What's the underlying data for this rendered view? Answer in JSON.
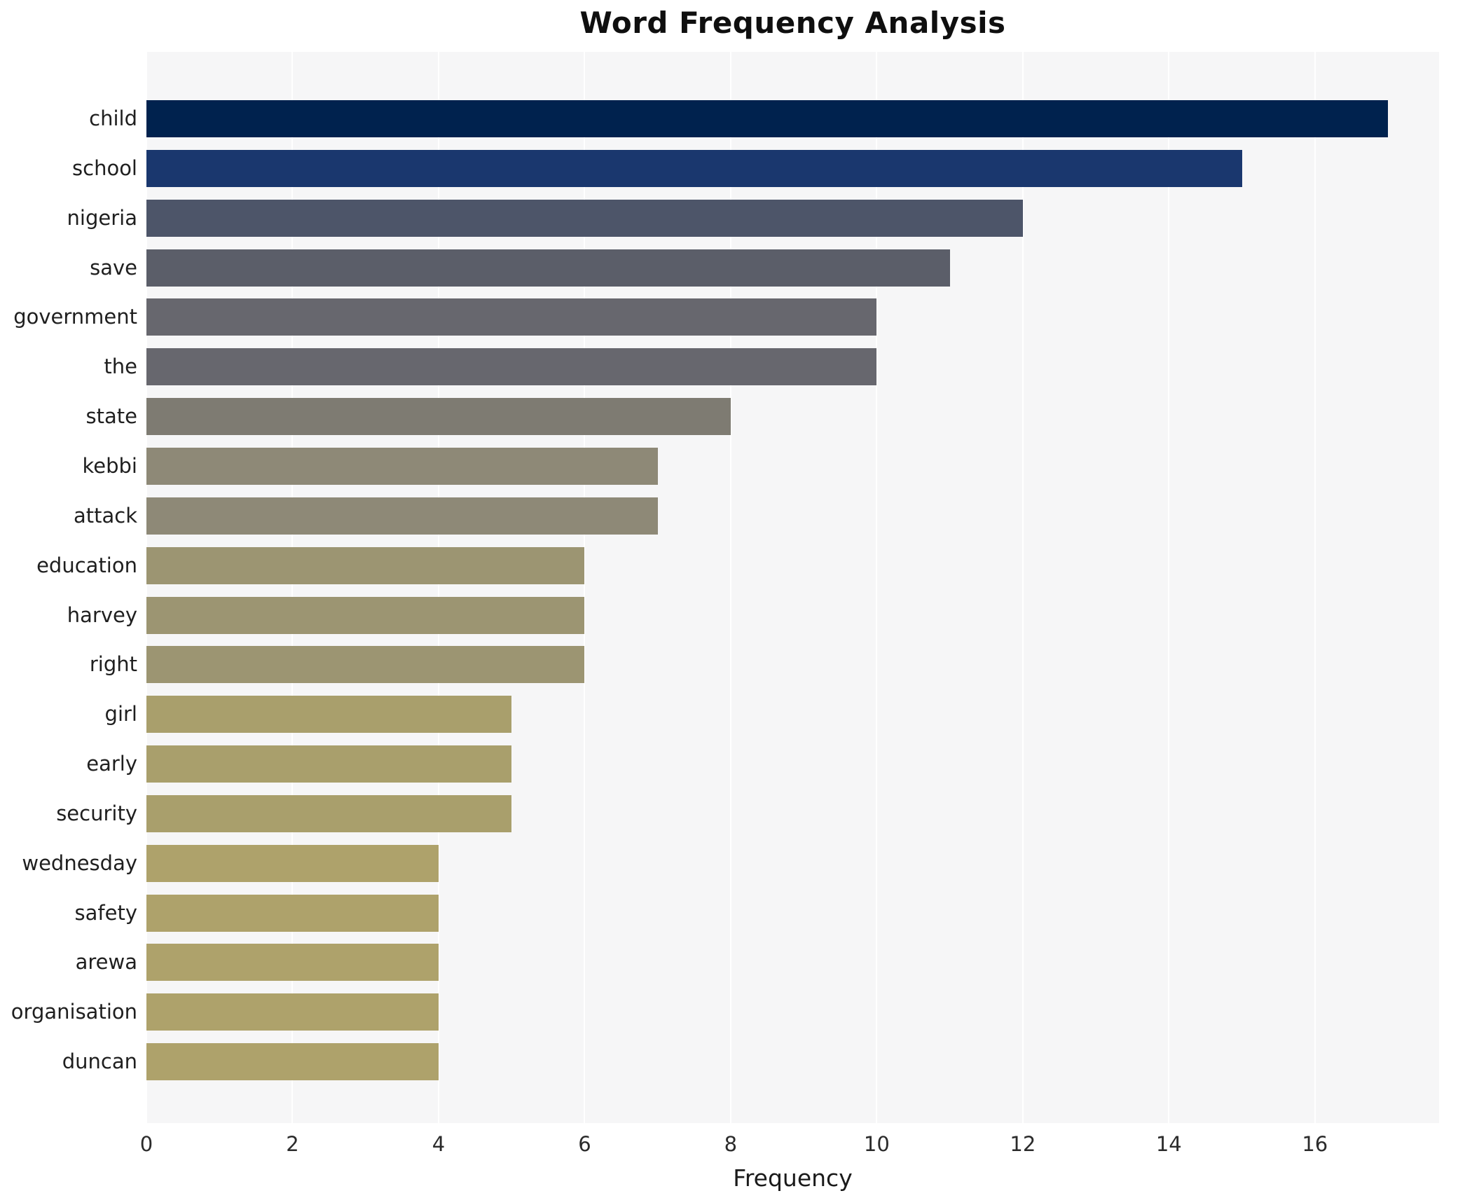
{
  "title": "Word Frequency Analysis",
  "chart_data": {
    "type": "bar",
    "orientation": "horizontal",
    "title": "Word Frequency Analysis",
    "xlabel": "Frequency",
    "ylabel": "",
    "categories": [
      "child",
      "school",
      "nigeria",
      "save",
      "government",
      "the",
      "state",
      "kebbi",
      "attack",
      "education",
      "harvey",
      "right",
      "girl",
      "early",
      "security",
      "wednesday",
      "safety",
      "arewa",
      "organisation",
      "duncan"
    ],
    "values": [
      17,
      15,
      12,
      11,
      10,
      10,
      8,
      7,
      7,
      6,
      6,
      6,
      5,
      5,
      5,
      4,
      4,
      4,
      4,
      4
    ],
    "bar_colors": [
      "#00224e",
      "#1a376e",
      "#4d5569",
      "#5b5e69",
      "#67676e",
      "#67676e",
      "#7e7b72",
      "#8e8977",
      "#8e8977",
      "#9c9572",
      "#9c9572",
      "#9c9572",
      "#a99f6c",
      "#a99f6c",
      "#a99f6c",
      "#aea26b",
      "#aea26b",
      "#aea26b",
      "#aea26b",
      "#aea26b"
    ],
    "xlim": [
      0,
      17.7
    ],
    "xticks": [
      0,
      2,
      4,
      6,
      8,
      10,
      12,
      14,
      16
    ],
    "grid": true,
    "legend": "none",
    "plot_bg_color": "#f6f6f7",
    "grid_color": "#ffffff",
    "colormap": "cividis"
  }
}
